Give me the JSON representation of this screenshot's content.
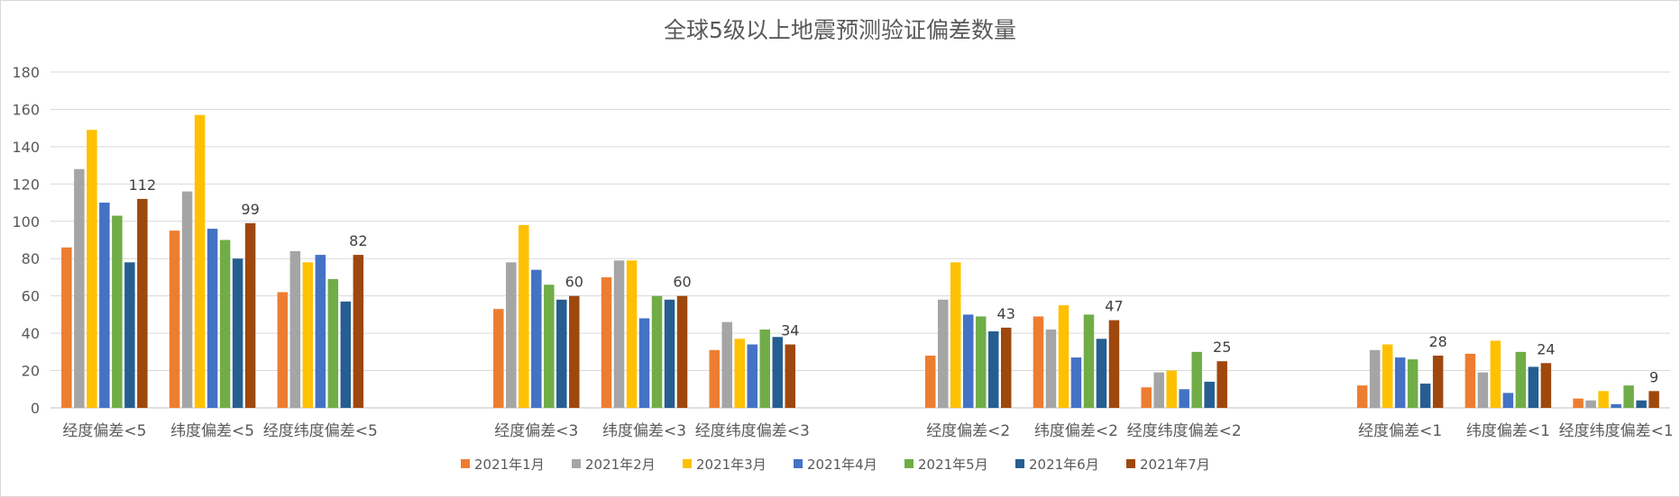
{
  "chart_data": {
    "type": "bar",
    "title": "全球5级以上地震预测验证偏差数量",
    "ylim": [
      0,
      180
    ],
    "yticks": [
      0,
      20,
      40,
      60,
      80,
      100,
      120,
      140,
      160,
      180
    ],
    "grid": true,
    "legend_position": "bottom",
    "categories": [
      "经度偏差<5",
      "纬度偏差<5",
      "经度纬度偏差<5",
      "",
      "经度偏差<3",
      "纬度偏差<3",
      "经度纬度偏差<3",
      "",
      "经度偏差<2",
      "纬度偏差<2",
      "经度纬度偏差<2",
      "",
      "经度偏差<1",
      "纬度偏差<1",
      "经度纬度偏差<1"
    ],
    "series": [
      {
        "name": "2021年1月",
        "color": "#ed7d31",
        "values": [
          86,
          95,
          62,
          null,
          53,
          70,
          31,
          null,
          28,
          49,
          11,
          null,
          12,
          29,
          5
        ]
      },
      {
        "name": "2021年2月",
        "color": "#a5a5a5",
        "values": [
          128,
          116,
          84,
          null,
          78,
          79,
          46,
          null,
          58,
          42,
          19,
          null,
          31,
          19,
          4
        ]
      },
      {
        "name": "2021年3月",
        "color": "#ffc000",
        "values": [
          149,
          157,
          78,
          null,
          98,
          79,
          37,
          null,
          78,
          55,
          20,
          null,
          34,
          36,
          9
        ]
      },
      {
        "name": "2021年4月",
        "color": "#4472c4",
        "values": [
          110,
          96,
          82,
          null,
          74,
          48,
          34,
          null,
          50,
          27,
          10,
          null,
          27,
          8,
          2
        ]
      },
      {
        "name": "2021年5月",
        "color": "#70ad47",
        "values": [
          103,
          90,
          69,
          null,
          66,
          60,
          42,
          null,
          49,
          50,
          30,
          null,
          26,
          30,
          12
        ]
      },
      {
        "name": "2021年6月",
        "color": "#255e91",
        "values": [
          78,
          80,
          57,
          null,
          58,
          58,
          38,
          null,
          41,
          37,
          14,
          null,
          13,
          22,
          4
        ]
      },
      {
        "name": "2021年7月",
        "color": "#9e480e",
        "values": [
          112,
          99,
          82,
          null,
          60,
          60,
          34,
          null,
          43,
          47,
          25,
          null,
          28,
          24,
          9
        ]
      }
    ],
    "data_labels_series": "2021年7月"
  }
}
